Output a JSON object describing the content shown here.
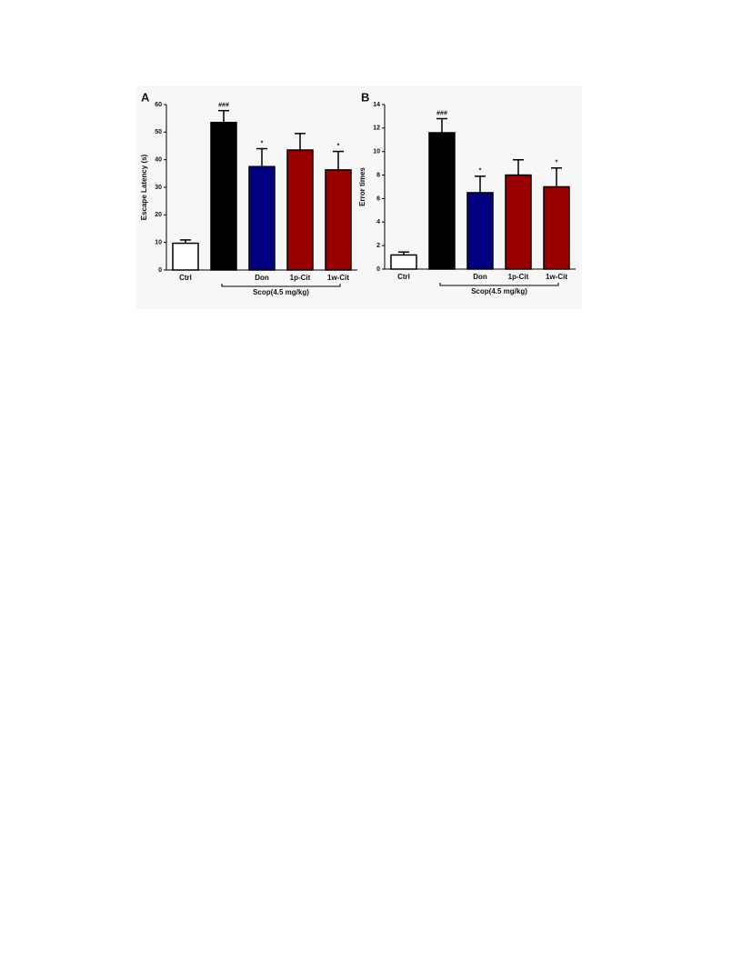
{
  "chart_data": [
    {
      "type": "bar",
      "panel": "A",
      "y_label": "Escape Latency (s)",
      "categories": [
        "Ctrl",
        null,
        "Don",
        "1p-Cit",
        "1w-Cit"
      ],
      "values": [
        9.7,
        53.5,
        37.5,
        43.5,
        36.3
      ],
      "errors": [
        1.2,
        4.3,
        6.5,
        6.0,
        6.7
      ],
      "annotations": [
        null,
        "###",
        "*",
        null,
        "*"
      ],
      "colors": [
        "#ffffff",
        "#000000",
        "#000080",
        "#990000",
        "#990000"
      ],
      "group_label": "Scop(4.5 mg/kg)",
      "ylim": [
        0,
        60
      ],
      "yticks": [
        0,
        10,
        20,
        30,
        40,
        50,
        60
      ]
    },
    {
      "type": "bar",
      "panel": "B",
      "y_label": "Error times",
      "categories": [
        "Ctrl",
        null,
        "Don",
        "1p-Cit",
        "1w-Cit"
      ],
      "values": [
        1.2,
        11.6,
        6.5,
        8.0,
        7.0
      ],
      "errors": [
        0.25,
        1.2,
        1.4,
        1.3,
        1.6
      ],
      "annotations": [
        null,
        "###",
        "*",
        null,
        "*"
      ],
      "colors": [
        "#ffffff",
        "#000000",
        "#000080",
        "#990000",
        "#990000"
      ],
      "group_label": "Scop(4.5 mg/kg)",
      "ylim": [
        0,
        14
      ],
      "yticks": [
        0,
        2,
        4,
        6,
        8,
        10,
        12,
        14
      ]
    }
  ]
}
